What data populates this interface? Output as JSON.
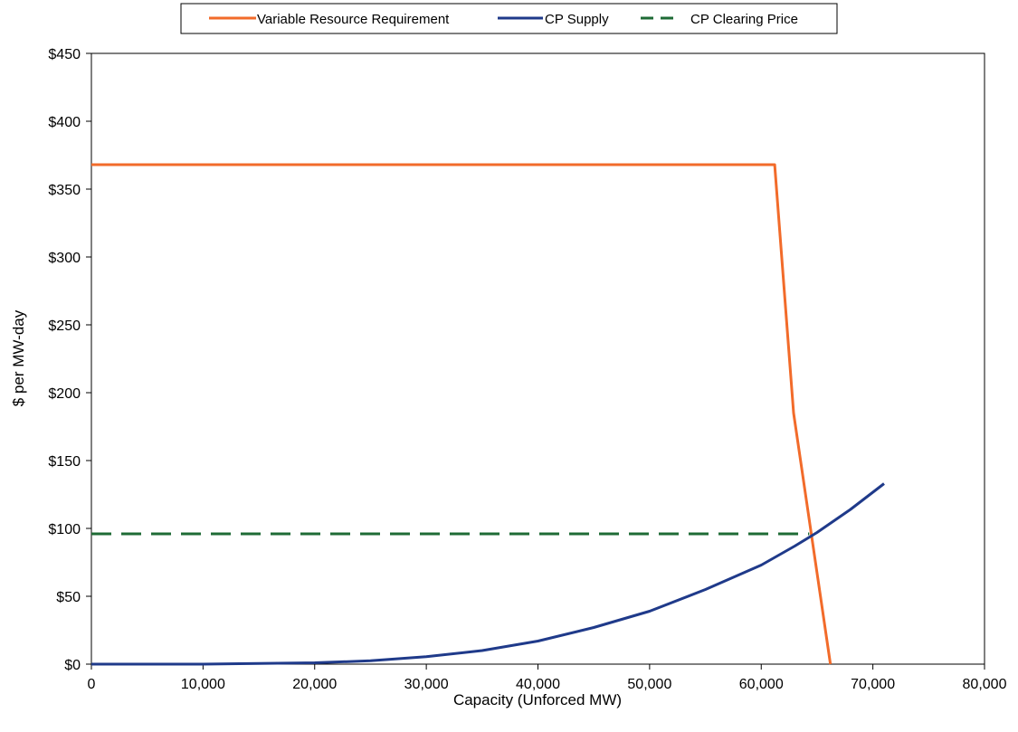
{
  "chart_data": {
    "type": "line",
    "title": "",
    "xlabel": "Capacity (Unforced MW)",
    "ylabel": "$ per MW-day",
    "xlim": [
      0,
      80000
    ],
    "ylim": [
      0,
      450
    ],
    "x_ticks": [
      0,
      10000,
      20000,
      30000,
      40000,
      50000,
      60000,
      70000,
      80000
    ],
    "x_tick_labels": [
      "0",
      "10,000",
      "20,000",
      "30,000",
      "40,000",
      "50,000",
      "60,000",
      "70,000",
      "80,000"
    ],
    "y_ticks": [
      0,
      50,
      100,
      150,
      200,
      250,
      300,
      350,
      400,
      450
    ],
    "y_tick_labels": [
      "$0",
      "$50",
      "$100",
      "$150",
      "$200",
      "$250",
      "$300",
      "$350",
      "$400",
      "$450"
    ],
    "grid": false,
    "legend_position": "top",
    "series": [
      {
        "name": "Variable Resource Requirement",
        "color": "#F26B2A",
        "style": "solid",
        "x": [
          0,
          61200,
          62900,
          66200
        ],
        "y": [
          368,
          368,
          185,
          0
        ]
      },
      {
        "name": "CP Supply",
        "color": "#1F3A8A",
        "style": "solid",
        "x": [
          0,
          10000,
          15000,
          20000,
          25000,
          30000,
          35000,
          40000,
          45000,
          50000,
          55000,
          60000,
          63000,
          65000,
          68000,
          71000
        ],
        "y": [
          0,
          0,
          0.5,
          1,
          2.5,
          5.5,
          10,
          17,
          27,
          39,
          55,
          73,
          87,
          97,
          114,
          133
        ]
      },
      {
        "name": "CP Clearing Price",
        "color": "#1E6B35",
        "style": "dashed",
        "x": [
          0,
          64300
        ],
        "y": [
          96,
          96
        ]
      }
    ]
  }
}
